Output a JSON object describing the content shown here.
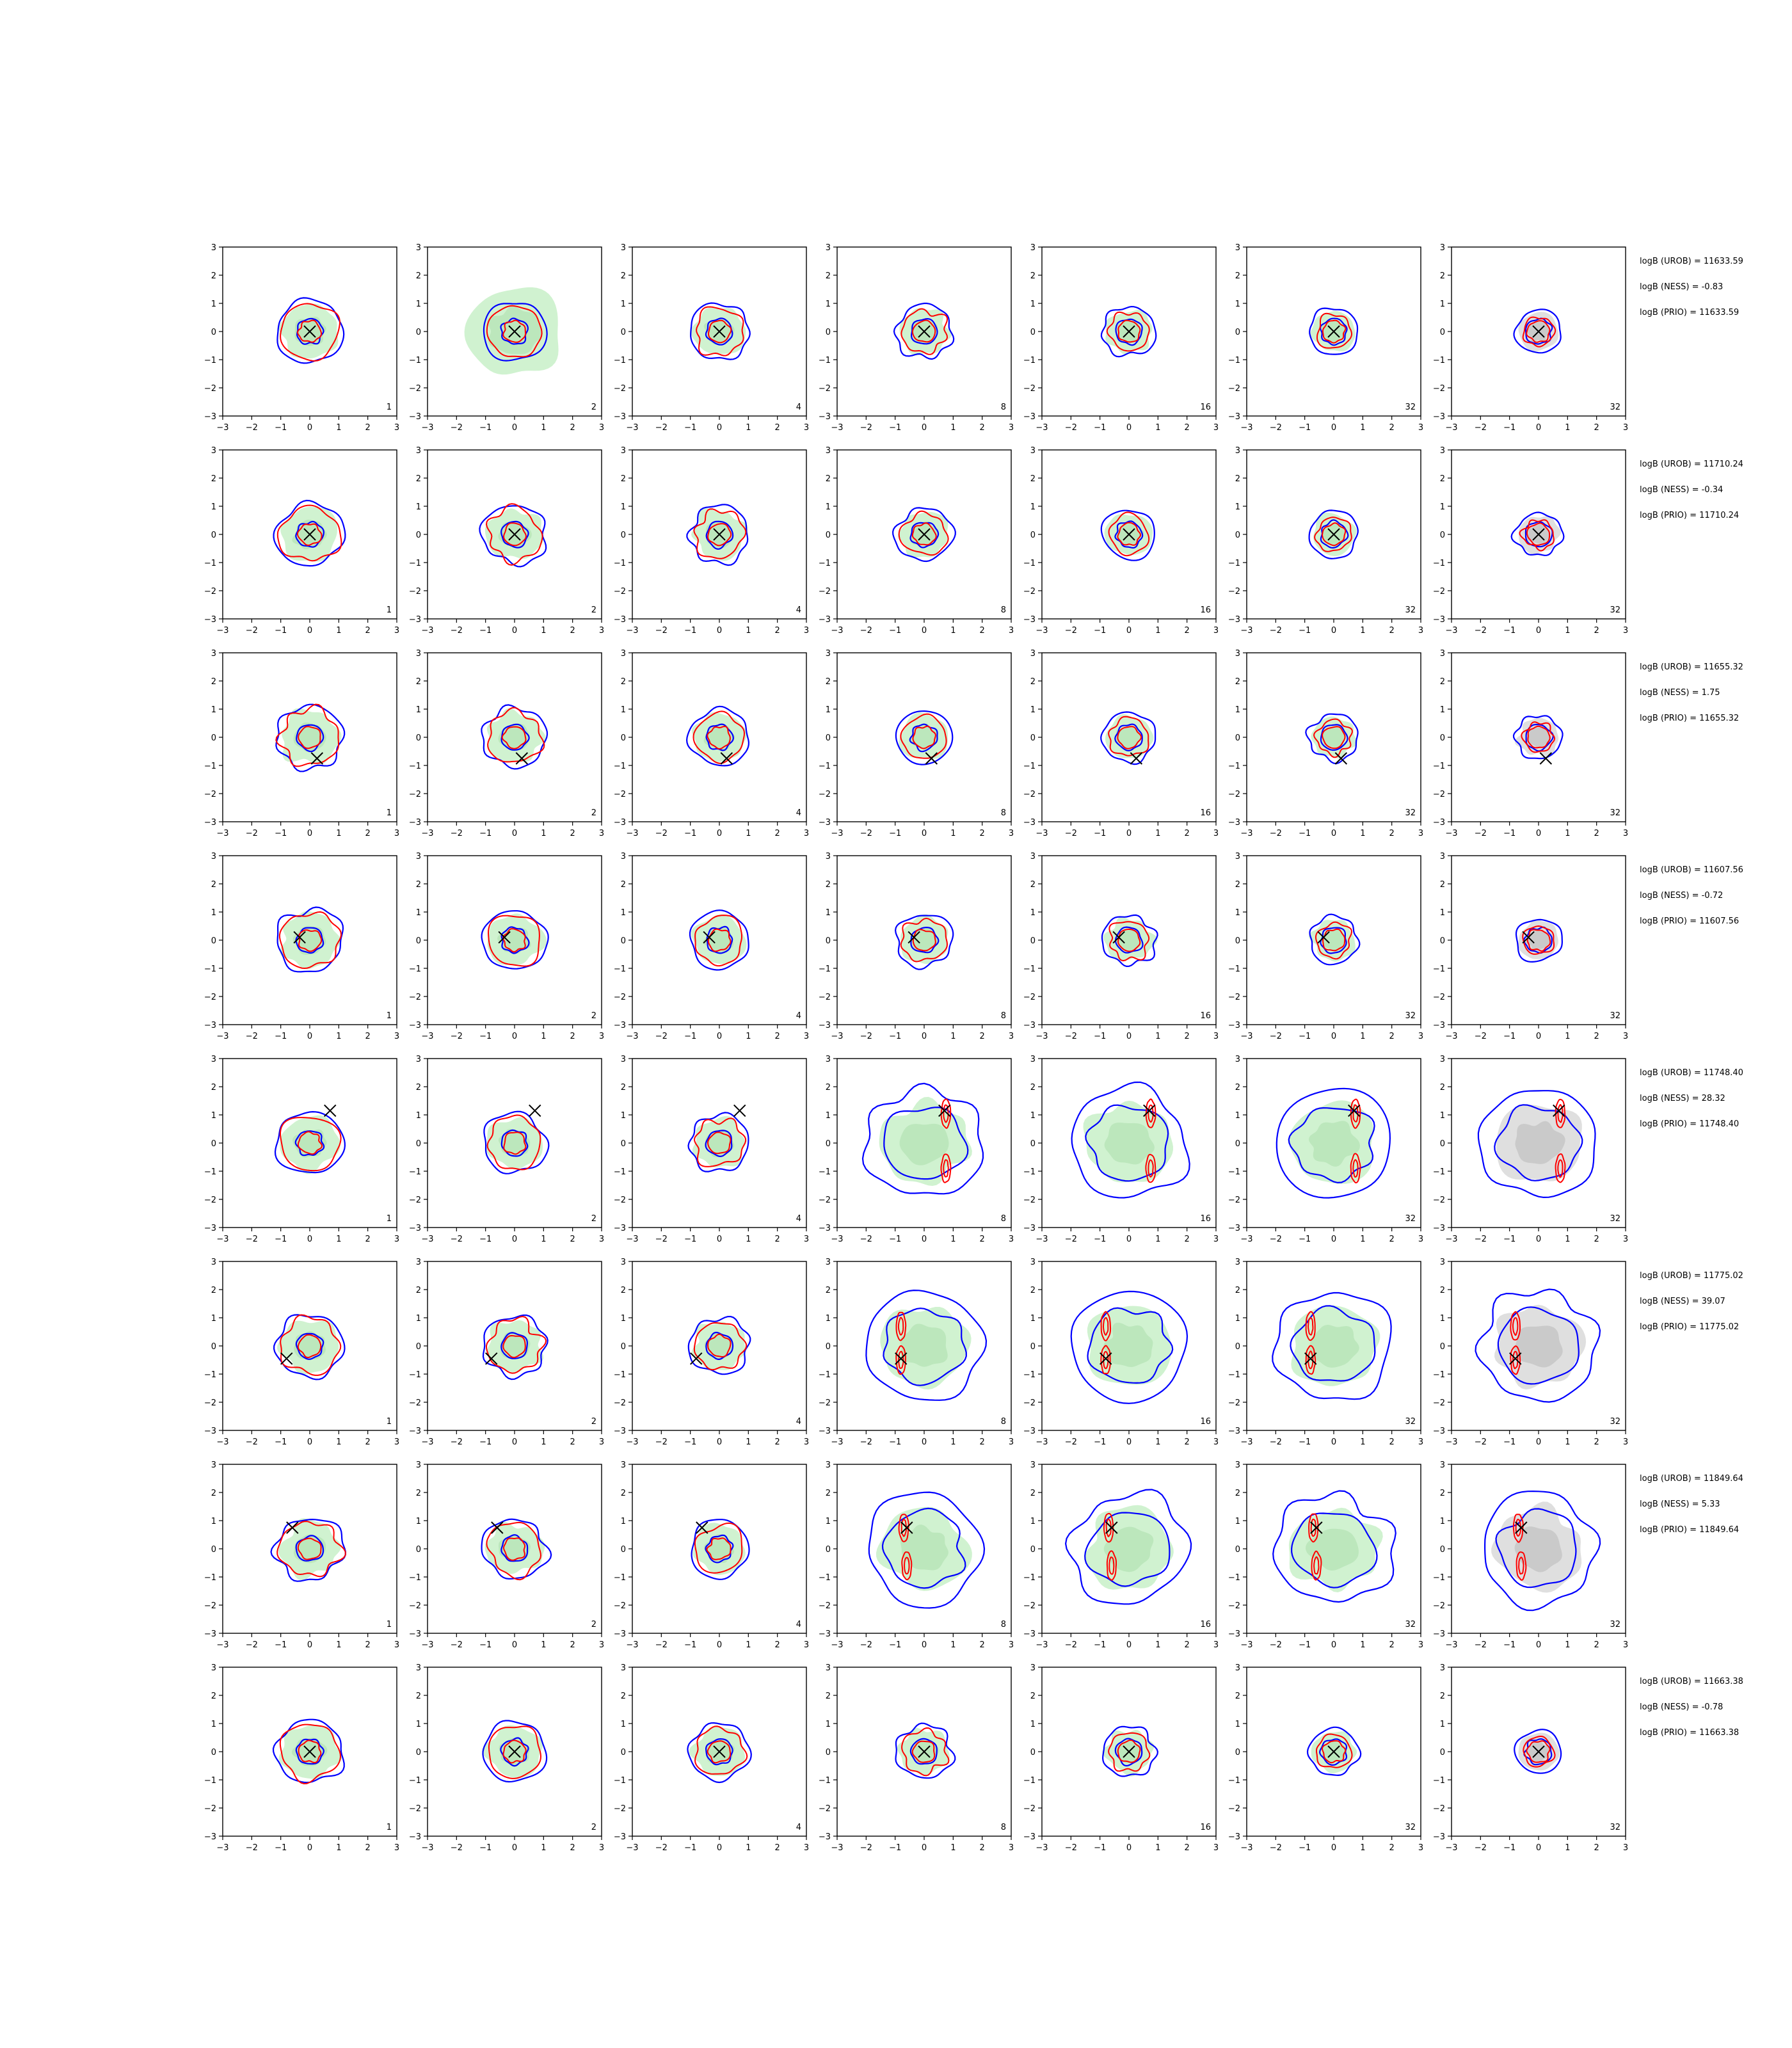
{
  "chart_data": {
    "type": "contour-grid",
    "rows": 8,
    "cols": 7,
    "xlim": [
      -3,
      3
    ],
    "ylim": [
      -3,
      3
    ],
    "xticks": [
      "−3",
      "−2",
      "−1",
      "0",
      "1",
      "2",
      "3"
    ],
    "yticks": [
      "3",
      "2",
      "1",
      "0",
      "−1",
      "−2",
      "−3"
    ],
    "column_counts": [
      "1",
      "2",
      "4",
      "8",
      "16",
      "32",
      "32"
    ],
    "colors": {
      "blue_contour": "#0000ff",
      "red_contour": "#ff0000",
      "green_fill": "#c8f0c8",
      "grey_fill": "#d9d9d9",
      "marker": "#000000"
    },
    "row_annotations": [
      {
        "urob": "logB (UROB) = 11633.59",
        "ness": "logB (NESS) = -0.83",
        "prio": "logB (PRIO) = 11633.59",
        "marker": [
          0.0,
          0.0
        ]
      },
      {
        "urob": "logB (UROB) = 11710.24",
        "ness": "logB (NESS) = -0.34",
        "prio": "logB (PRIO) = 11710.24",
        "marker": [
          0.0,
          0.0
        ]
      },
      {
        "urob": "logB (UROB) = 11655.32",
        "ness": "logB (NESS) = 1.75",
        "prio": "logB (PRIO) = 11655.32",
        "marker": [
          0.25,
          -0.75
        ]
      },
      {
        "urob": "logB (UROB) = 11607.56",
        "ness": "logB (NESS) = -0.72",
        "prio": "logB (PRIO) = 11607.56",
        "marker": [
          -0.35,
          0.1
        ]
      },
      {
        "urob": "logB (UROB) = 11748.40",
        "ness": "logB (NESS) = 28.32",
        "prio": "logB (PRIO) = 11748.40",
        "marker": [
          0.7,
          1.15
        ]
      },
      {
        "urob": "logB (UROB) = 11775.02",
        "ness": "logB (NESS) = 39.07",
        "prio": "logB (PRIO) = 11775.02",
        "marker": [
          -0.8,
          -0.45
        ]
      },
      {
        "urob": "logB (UROB) = 11849.64",
        "ness": "logB (NESS) = 5.33",
        "prio": "logB (PRIO) = 11849.64",
        "marker": [
          -0.6,
          0.75
        ]
      },
      {
        "urob": "logB (UROB) = 11663.38",
        "ness": "logB (NESS) = -0.78",
        "prio": "logB (PRIO) = 11663.38",
        "marker": [
          0.0,
          0.0
        ]
      }
    ]
  }
}
